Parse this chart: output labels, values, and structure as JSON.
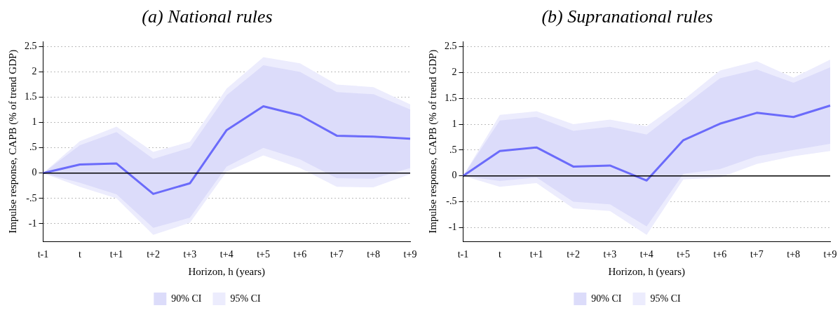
{
  "chart_data": [
    {
      "type": "line",
      "title": "(a) National rules",
      "xlabel": "Horizon, h (years)",
      "ylabel": "Impulse response, CAPB (% of trend GDP)",
      "categories": [
        "t-1",
        "t",
        "t+1",
        "t+2",
        "t+3",
        "t+4",
        "t+5",
        "t+6",
        "t+7",
        "t+8",
        "t+9"
      ],
      "series": [
        {
          "type": "area",
          "name": "95% CI",
          "color": "#ececfd",
          "values": [
            null,
            null,
            null,
            null,
            null,
            null,
            null,
            null,
            null,
            null,
            null
          ],
          "lower": [
            0,
            -0.27,
            -0.5,
            -1.22,
            -0.98,
            0.03,
            0.35,
            0.1,
            -0.27,
            -0.28,
            -0.02
          ],
          "upper": [
            0,
            0.63,
            0.92,
            0.42,
            0.62,
            1.67,
            2.29,
            2.17,
            1.75,
            1.7,
            1.36
          ]
        },
        {
          "type": "area",
          "name": "90% CI",
          "color": "#dcdcfa",
          "values": [
            null,
            null,
            null,
            null,
            null,
            null,
            null,
            null,
            null,
            null,
            null
          ],
          "lower": [
            0,
            -0.19,
            -0.42,
            -1.08,
            -0.88,
            0.13,
            0.5,
            0.27,
            -0.1,
            -0.11,
            0.1
          ],
          "upper": [
            0,
            0.55,
            0.81,
            0.28,
            0.5,
            1.54,
            2.13,
            2.0,
            1.6,
            1.56,
            1.26
          ]
        },
        {
          "type": "line",
          "color": "#6b6bfa",
          "values": [
            0,
            0.17,
            0.19,
            -0.41,
            -0.2,
            0.85,
            1.32,
            1.14,
            0.74,
            0.72,
            0.68
          ]
        }
      ],
      "ylim": [
        -1.35,
        2.6
      ],
      "yticks": [
        {
          "value": -1,
          "label": "-1"
        },
        {
          "value": -0.5,
          "label": "-.5"
        },
        0,
        {
          "value": 0.5,
          "label": ".5"
        },
        1,
        1.5,
        2,
        2.5
      ],
      "ref_lines": [
        {
          "axis": "y",
          "value": 0,
          "color": "#000000"
        }
      ],
      "grid": "y",
      "legend": "bottom",
      "marker": "none"
    },
    {
      "type": "line",
      "title": "(b) Supranational rules",
      "xlabel": "Horizon, h (years)",
      "ylabel": "Impulse response, CAPB (% of trend GDP)",
      "categories": [
        "t-1",
        "t",
        "t+1",
        "t+2",
        "t+3",
        "t+4",
        "t+5",
        "t+6",
        "t+7",
        "t+8",
        "t+9"
      ],
      "series": [
        {
          "type": "area",
          "name": "95% CI",
          "color": "#ececfd",
          "values": [
            null,
            null,
            null,
            null,
            null,
            null,
            null,
            null,
            null,
            null,
            null
          ],
          "lower": [
            0,
            -0.21,
            -0.14,
            -0.63,
            -0.68,
            -1.14,
            -0.07,
            -0.03,
            0.23,
            0.38,
            0.48
          ],
          "upper": [
            0,
            1.18,
            1.25,
            1.0,
            1.09,
            0.96,
            1.47,
            2.04,
            2.22,
            1.9,
            2.25
          ]
        },
        {
          "type": "area",
          "name": "90% CI",
          "color": "#dcdcfa",
          "values": [
            null,
            null,
            null,
            null,
            null,
            null,
            null,
            null,
            null,
            null,
            null
          ],
          "lower": [
            0,
            -0.1,
            -0.03,
            -0.5,
            -0.55,
            -0.98,
            0.04,
            0.13,
            0.38,
            0.5,
            0.62
          ],
          "upper": [
            0,
            1.07,
            1.14,
            0.87,
            0.95,
            0.8,
            1.35,
            1.89,
            2.06,
            1.8,
            2.1
          ]
        },
        {
          "type": "line",
          "color": "#6b6bfa",
          "values": [
            0,
            0.48,
            0.55,
            0.18,
            0.2,
            -0.09,
            0.69,
            1.01,
            1.22,
            1.14,
            1.36
          ]
        }
      ],
      "ylim": [
        -1.27,
        2.6
      ],
      "yticks": [
        {
          "value": -1,
          "label": "-1"
        },
        {
          "value": -0.5,
          "label": "-.5"
        },
        0,
        {
          "value": 0.5,
          "label": ".5"
        },
        1,
        1.5,
        2,
        2.5
      ],
      "ref_lines": [
        {
          "axis": "y",
          "value": 0,
          "color": "#000000"
        }
      ],
      "grid": "y",
      "legend": "bottom",
      "marker": "none"
    }
  ]
}
